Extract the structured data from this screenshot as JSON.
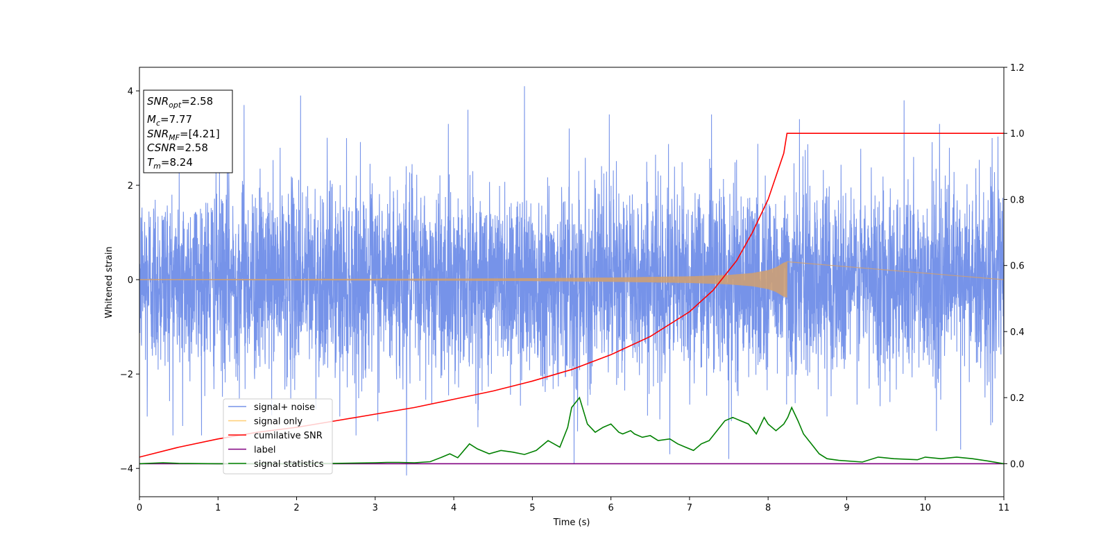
{
  "chart_data": {
    "type": "line",
    "xlabel": "Time (s)",
    "ylabel": "Whitened strain",
    "xlim": [
      0,
      11
    ],
    "ylim": [
      -4.6,
      4.5
    ],
    "ylim_right": [
      -0.1,
      1.2
    ],
    "xticks": [
      "0",
      "1",
      "2",
      "3",
      "4",
      "5",
      "6",
      "7",
      "8",
      "9",
      "10",
      "11"
    ],
    "yticks": [
      "4",
      "2",
      "0",
      "−2",
      "−4"
    ],
    "yticks_right": [
      "1.2",
      "1.0",
      "0.8",
      "0.6",
      "0.4",
      "0.2",
      "0.0"
    ],
    "grid": false,
    "legend_position": "lower-left",
    "annotation": {
      "lines": [
        {
          "symbol": "SNR",
          "subscript": "opt",
          "value": "=2.58"
        },
        {
          "symbol": "M",
          "subscript": "c",
          "value": "=7.77"
        },
        {
          "symbol": "SNR",
          "subscript": "MF",
          "value": "=[4.21]"
        },
        {
          "symbol": "CSNR",
          "subscript": "",
          "value": "=2.58"
        },
        {
          "symbol": "T",
          "subscript": "m",
          "value": "=8.24"
        }
      ]
    },
    "series": [
      {
        "name": "signal+ noise",
        "axis": "left",
        "color": "#4169e1",
        "description_values": "whitened noise, roughly ±2.5 with spikes reaching ±4",
        "typical_amplitude": 1.0,
        "peaks_x": [
          0.1,
          0.55,
          1.12,
          1.33,
          2.05,
          2.55,
          3.4,
          4.18,
          4.9,
          5.53,
          5.98,
          6.75,
          7.28,
          7.5,
          8.4,
          9.73,
          10.45,
          10.85
        ],
        "peaks_y": [
          -2.9,
          -3.1,
          3.8,
          3.7,
          3.9,
          -2.9,
          -4.15,
          3.6,
          4.1,
          -3.9,
          3.5,
          -3.7,
          3.5,
          -3.8,
          3.4,
          3.8,
          -3.6,
          3.0
        ]
      },
      {
        "name": "signal only",
        "axis": "left",
        "color": "#d2a06e",
        "chirp_end_x": 8.24,
        "envelope_x": [
          0,
          1,
          2,
          3,
          4,
          5,
          6,
          7,
          7.5,
          7.8,
          8.0,
          8.1,
          8.2,
          8.24
        ],
        "envelope_y": [
          0.01,
          0.012,
          0.015,
          0.018,
          0.022,
          0.03,
          0.045,
          0.07,
          0.1,
          0.14,
          0.2,
          0.26,
          0.36,
          0.38
        ]
      },
      {
        "name": "cumilative SNR",
        "axis": "right",
        "color": "#ff0000",
        "x": [
          0,
          0.5,
          1,
          1.5,
          2,
          2.5,
          3,
          3.5,
          4,
          4.5,
          5,
          5.5,
          6,
          6.5,
          7,
          7.3,
          7.6,
          7.8,
          8.0,
          8.1,
          8.2,
          8.24,
          8.25,
          11
        ],
        "y": [
          0.02,
          0.05,
          0.075,
          0.095,
          0.11,
          0.13,
          0.15,
          0.17,
          0.195,
          0.22,
          0.25,
          0.285,
          0.33,
          0.385,
          0.46,
          0.525,
          0.615,
          0.7,
          0.8,
          0.87,
          0.94,
          1.0,
          1.0,
          1.0
        ]
      },
      {
        "name": "label",
        "axis": "right",
        "color": "#800080",
        "x": [
          0,
          11
        ],
        "y": [
          0,
          0
        ]
      },
      {
        "name": "signal statistics",
        "axis": "right",
        "color": "#008000",
        "x": [
          0,
          0.3,
          0.5,
          1,
          2,
          2.5,
          3,
          3.15,
          3.3,
          3.5,
          3.7,
          3.85,
          3.95,
          4.05,
          4.2,
          4.3,
          4.45,
          4.6,
          4.75,
          4.9,
          5.05,
          5.2,
          5.35,
          5.45,
          5.5,
          5.6,
          5.7,
          5.8,
          5.9,
          6.0,
          6.1,
          6.15,
          6.25,
          6.3,
          6.4,
          6.5,
          6.6,
          6.75,
          6.85,
          6.95,
          7.05,
          7.15,
          7.25,
          7.35,
          7.45,
          7.55,
          7.65,
          7.75,
          7.85,
          7.95,
          8.0,
          8.1,
          8.2,
          8.25,
          8.3,
          8.38,
          8.45,
          8.55,
          8.65,
          8.75,
          8.9,
          9.2,
          9.4,
          9.6,
          9.9,
          10.0,
          10.2,
          10.4,
          10.6,
          10.8,
          11
        ],
        "y": [
          0.0,
          0.003,
          0.001,
          0.0,
          0.0,
          0.001,
          0.003,
          0.004,
          0.004,
          0.003,
          0.006,
          0.02,
          0.03,
          0.018,
          0.06,
          0.045,
          0.03,
          0.04,
          0.035,
          0.028,
          0.04,
          0.07,
          0.05,
          0.11,
          0.17,
          0.2,
          0.12,
          0.095,
          0.11,
          0.12,
          0.095,
          0.09,
          0.1,
          0.09,
          0.08,
          0.085,
          0.07,
          0.075,
          0.06,
          0.05,
          0.04,
          0.06,
          0.07,
          0.1,
          0.13,
          0.14,
          0.13,
          0.12,
          0.09,
          0.14,
          0.12,
          0.1,
          0.12,
          0.14,
          0.17,
          0.13,
          0.09,
          0.06,
          0.03,
          0.015,
          0.01,
          0.005,
          0.02,
          0.015,
          0.012,
          0.02,
          0.015,
          0.02,
          0.015,
          0.008,
          0.0
        ]
      }
    ]
  }
}
